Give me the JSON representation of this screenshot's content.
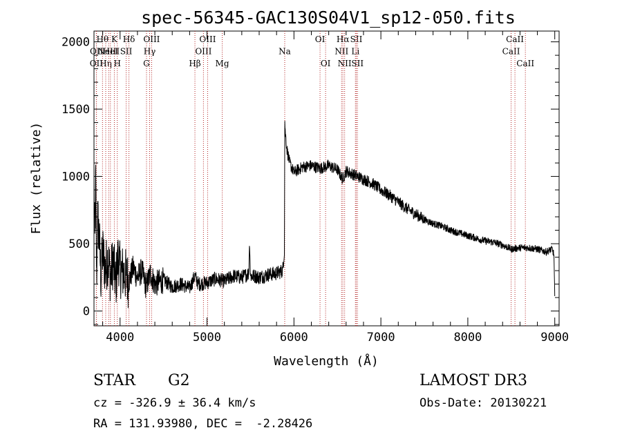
{
  "chart_data": {
    "type": "line",
    "title": "spec-56345-GAC130S04V1_sp12-050.fits",
    "xlabel": "Wavelength (Å)",
    "ylabel": "Flux (relative)",
    "xlim": [
      3700,
      9050
    ],
    "ylim": [
      -110,
      2080
    ],
    "xticks": [
      4000,
      5000,
      6000,
      7000,
      8000,
      9000
    ],
    "yticks": [
      0,
      500,
      1000,
      1500,
      2000
    ],
    "tick_labels_x": [
      "4000",
      "5000",
      "6000",
      "7000",
      "8000",
      "9000"
    ],
    "tick_labels_y": [
      "0",
      "500",
      "1000",
      "1500",
      "2000"
    ],
    "grid": false,
    "line_color": "#000000",
    "marker_color": "#b22222",
    "series": [
      {
        "x": [
          3700,
          3710,
          3720,
          3730,
          3740,
          3760,
          3780,
          3800,
          3830,
          3860,
          3890,
          3920,
          3950,
          3980,
          4000,
          4050,
          4100,
          4150,
          4200,
          4250,
          4300,
          4350,
          4400,
          4500,
          4600,
          4700,
          4800,
          4860,
          4900,
          5000,
          5100,
          5200,
          5300,
          5400,
          5480,
          5490,
          5500,
          5550,
          5600,
          5700,
          5800,
          5870,
          5890,
          5895,
          5900,
          5920,
          5950,
          6000,
          6100,
          6200,
          6300,
          6400,
          6500,
          6560,
          6600,
          6700,
          6800,
          6900,
          7000,
          7100,
          7200,
          7300,
          7400,
          7500,
          7600,
          7700,
          7800,
          7900,
          8000,
          8100,
          8200,
          8300,
          8400,
          8500,
          8600,
          8700,
          8800,
          8900,
          8970,
          8990,
          9000
        ],
        "y": [
          900,
          500,
          1000,
          200,
          700,
          550,
          250,
          450,
          300,
          400,
          250,
          380,
          200,
          420,
          300,
          280,
          220,
          320,
          250,
          300,
          180,
          280,
          200,
          230,
          180,
          200,
          170,
          260,
          200,
          210,
          240,
          220,
          260,
          250,
          280,
          520,
          260,
          260,
          250,
          270,
          280,
          300,
          450,
          1420,
          1330,
          1200,
          1100,
          1030,
          1070,
          1080,
          1060,
          1080,
          1050,
          980,
          1040,
          1010,
          980,
          950,
          900,
          860,
          810,
          760,
          720,
          680,
          650,
          630,
          600,
          580,
          560,
          540,
          520,
          510,
          490,
          460,
          470,
          470,
          460,
          440,
          460,
          420,
          100
        ]
      }
    ],
    "lines": [
      {
        "x": 3727,
        "name": "OII",
        "row": 3
      },
      {
        "x": 3729,
        "name": "OII",
        "row": 2
      },
      {
        "x": 3798,
        "name": "Hθ",
        "row": 1
      },
      {
        "x": 3835,
        "name": "Hη",
        "row": 3
      },
      {
        "x": 3869,
        "name": "NeIII",
        "row": 2
      },
      {
        "x": 3889,
        "name": "HeI",
        "row": 2
      },
      {
        "x": 3934,
        "name": "K",
        "row": 1
      },
      {
        "x": 3968,
        "name": "H",
        "row": 3
      },
      {
        "x": 4070,
        "name": "SII",
        "row": 2
      },
      {
        "x": 4102,
        "name": "Hδ",
        "row": 1
      },
      {
        "x": 4304,
        "name": "G",
        "row": 3
      },
      {
        "x": 4340,
        "name": "Hγ",
        "row": 2
      },
      {
        "x": 4363,
        "name": "OIII",
        "row": 1
      },
      {
        "x": 4861,
        "name": "Hβ",
        "row": 3
      },
      {
        "x": 4959,
        "name": "OIII",
        "row": 2
      },
      {
        "x": 5007,
        "name": "OIII",
        "row": 1
      },
      {
        "x": 5175,
        "name": "Mg",
        "row": 3
      },
      {
        "x": 5894,
        "name": "Na",
        "row": 2
      },
      {
        "x": 6300,
        "name": "OI",
        "row": 1
      },
      {
        "x": 6364,
        "name": "OI",
        "row": 3
      },
      {
        "x": 6548,
        "name": "NII",
        "row": 2
      },
      {
        "x": 6563,
        "name": "Hα",
        "row": 1
      },
      {
        "x": 6583,
        "name": "NII",
        "row": 3
      },
      {
        "x": 6707,
        "name": "Li",
        "row": 2
      },
      {
        "x": 6717,
        "name": "SII",
        "row": 1
      },
      {
        "x": 6731,
        "name": "SII",
        "row": 3
      },
      {
        "x": 8498,
        "name": "CaII",
        "row": 2
      },
      {
        "x": 8542,
        "name": "CaII",
        "row": 1
      },
      {
        "x": 8662,
        "name": "CaII",
        "row": 3
      }
    ]
  },
  "info": {
    "object_type": "STAR",
    "subclass": "G2",
    "survey": "LAMOST DR3",
    "cz_label": "cz = ",
    "cz_value": "-326.9",
    "cz_pm": " ± ",
    "cz_error": "36.4",
    "cz_unit": " km/s",
    "obs_date": "Obs-Date: 20130221",
    "coords": "RA = 131.93980, DEC =  -2.28426"
  }
}
